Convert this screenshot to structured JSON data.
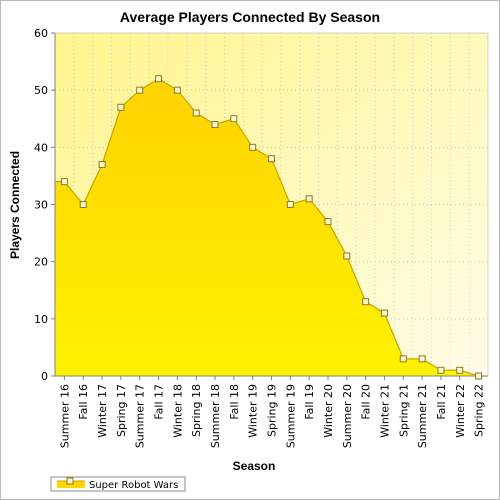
{
  "chart_data": {
    "type": "area",
    "title": "Average Players Connected By Season",
    "xlabel": "Season",
    "ylabel": "Players Connected",
    "ylim": [
      0,
      60
    ],
    "yticks": [
      0,
      10,
      20,
      30,
      40,
      50,
      60
    ],
    "grid": true,
    "legend_position": "bottom-left",
    "categories": [
      "Summer 16",
      "Fall 16",
      "Winter 17",
      "Spring 17",
      "Summer 17",
      "Fall 17",
      "Winter 18",
      "Spring 18",
      "Summer 18",
      "Fall 18",
      "Winter 19",
      "Spring 19",
      "Summer 19",
      "Fall 19",
      "Winter 20",
      "Summer 20",
      "Fall 20",
      "Winter 21",
      "Spring 21",
      "Summer 21",
      "Fall 21",
      "Winter 22",
      "Spring 22"
    ],
    "series": [
      {
        "name": "Super Robot Wars",
        "values": [
          34,
          30,
          37,
          47,
          50,
          52,
          50,
          46,
          44,
          45,
          40,
          38,
          30,
          31,
          27,
          21,
          13,
          11,
          3,
          3,
          1,
          1,
          0
        ],
        "color": "#ffd800"
      }
    ],
    "colors": {
      "plot_bg_top": "#fff58c",
      "plot_bg_bottom": "#fffde8",
      "area_top": "#ffd200",
      "area_bottom": "#fff200",
      "line": "#c8a400",
      "marker_fill": "#fff8c8",
      "marker_stroke": "#8c7a2a"
    }
  }
}
